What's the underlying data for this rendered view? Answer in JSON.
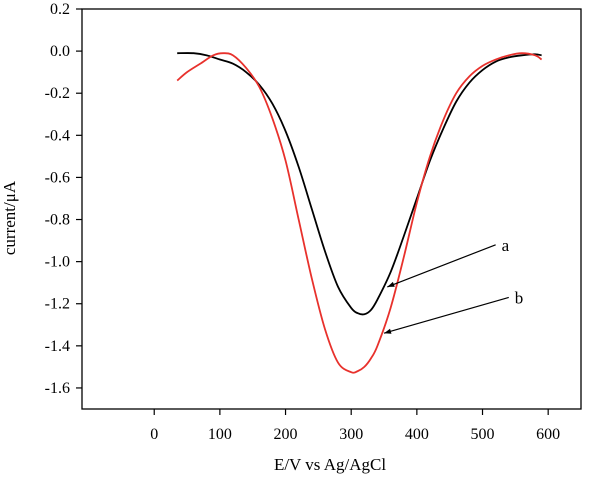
{
  "chart_data": {
    "type": "line",
    "title": "",
    "xlabel": "E/V vs Ag/AgCl",
    "ylabel": "current/μA",
    "xlim": [
      -110,
      650
    ],
    "ylim": [
      -1.7,
      0.2
    ],
    "x_ticks": [
      0,
      100,
      200,
      300,
      400,
      500,
      600
    ],
    "y_ticks": [
      0.2,
      0.0,
      -0.2,
      -0.4,
      -0.6,
      -0.8,
      -1.0,
      -1.2,
      -1.4,
      -1.6
    ],
    "x_tick_labels": [
      "0",
      "100",
      "200",
      "300",
      "400",
      "500",
      "600"
    ],
    "y_tick_labels": [
      "0.2",
      "0.0",
      "-0.2",
      "-0.4",
      "-0.6",
      "-0.8",
      "-1.0",
      "-1.2",
      "-1.4",
      "-1.6"
    ],
    "grid": false,
    "series": [
      {
        "name": "a",
        "color": "#000000",
        "x": [
          35,
          60,
          80,
          100,
          120,
          140,
          160,
          180,
          200,
          220,
          240,
          260,
          280,
          300,
          310,
          320,
          330,
          340,
          360,
          380,
          400,
          420,
          440,
          460,
          480,
          500,
          520,
          540,
          560,
          580,
          590
        ],
        "y": [
          -0.01,
          -0.01,
          -0.02,
          -0.04,
          -0.06,
          -0.1,
          -0.16,
          -0.25,
          -0.38,
          -0.55,
          -0.75,
          -0.95,
          -1.12,
          -1.22,
          -1.245,
          -1.25,
          -1.23,
          -1.18,
          -1.05,
          -0.88,
          -0.7,
          -0.52,
          -0.37,
          -0.24,
          -0.15,
          -0.09,
          -0.05,
          -0.03,
          -0.02,
          -0.015,
          -0.02
        ]
      },
      {
        "name": "b",
        "color": "#e8312c",
        "x": [
          35,
          50,
          70,
          90,
          105,
          120,
          140,
          160,
          180,
          200,
          220,
          240,
          260,
          280,
          300,
          310,
          320,
          330,
          340,
          360,
          380,
          400,
          420,
          440,
          460,
          480,
          500,
          520,
          540,
          560,
          580,
          590
        ],
        "y": [
          -0.14,
          -0.1,
          -0.06,
          -0.02,
          -0.01,
          -0.02,
          -0.08,
          -0.17,
          -0.32,
          -0.52,
          -0.8,
          -1.08,
          -1.32,
          -1.48,
          -1.525,
          -1.52,
          -1.5,
          -1.46,
          -1.4,
          -1.22,
          -0.98,
          -0.72,
          -0.5,
          -0.33,
          -0.2,
          -0.12,
          -0.07,
          -0.04,
          -0.02,
          -0.01,
          -0.02,
          -0.04
        ]
      }
    ],
    "annotations": [
      {
        "text": "a",
        "series": "a",
        "tip": [
          355,
          -1.12
        ],
        "tail": [
          520,
          -0.92
        ]
      },
      {
        "text": "b",
        "series": "b",
        "tip": [
          350,
          -1.34
        ],
        "tail": [
          540,
          -1.17
        ]
      }
    ]
  }
}
